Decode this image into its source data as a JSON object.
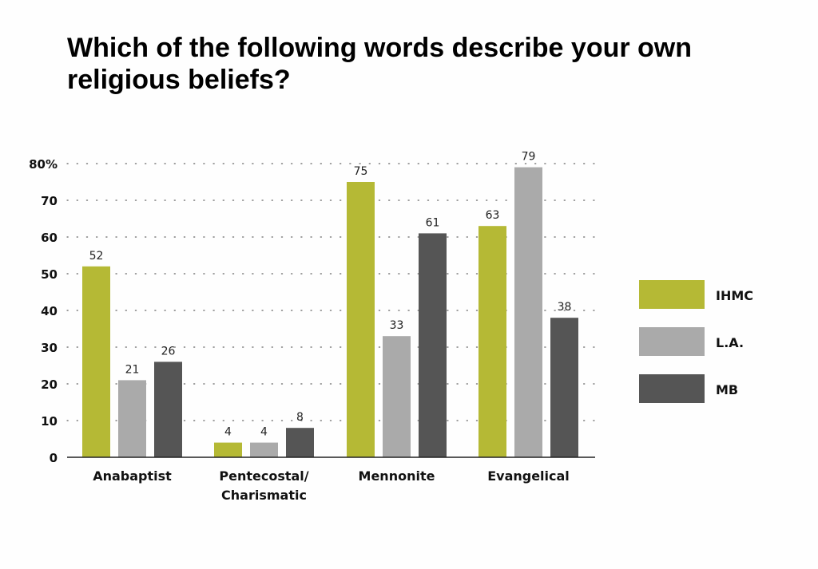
{
  "title": "Which of the following words describe your own religious beliefs?",
  "colors": {
    "IHMC": "#b5b935",
    "L.A.": "#aaaaaa",
    "MB": "#555555"
  },
  "chart_data": {
    "type": "bar",
    "title": "Which of the following words describe your own religious beliefs?",
    "categories": [
      [
        "Anabaptist"
      ],
      [
        "Pentecostal/",
        "Charismatic"
      ],
      [
        "Mennonite"
      ],
      [
        "Evangelical"
      ]
    ],
    "series": [
      {
        "name": "IHMC",
        "values": [
          52,
          4,
          75,
          63
        ]
      },
      {
        "name": "L.A.",
        "values": [
          21,
          4,
          33,
          79
        ]
      },
      {
        "name": "MB",
        "values": [
          26,
          8,
          61,
          38
        ]
      }
    ],
    "yticks": [
      "0",
      "10",
      "20",
      "30",
      "40",
      "50",
      "60",
      "70",
      "80%"
    ],
    "ylim": [
      0,
      80
    ],
    "grid": "dotted",
    "legend_position": "right"
  }
}
